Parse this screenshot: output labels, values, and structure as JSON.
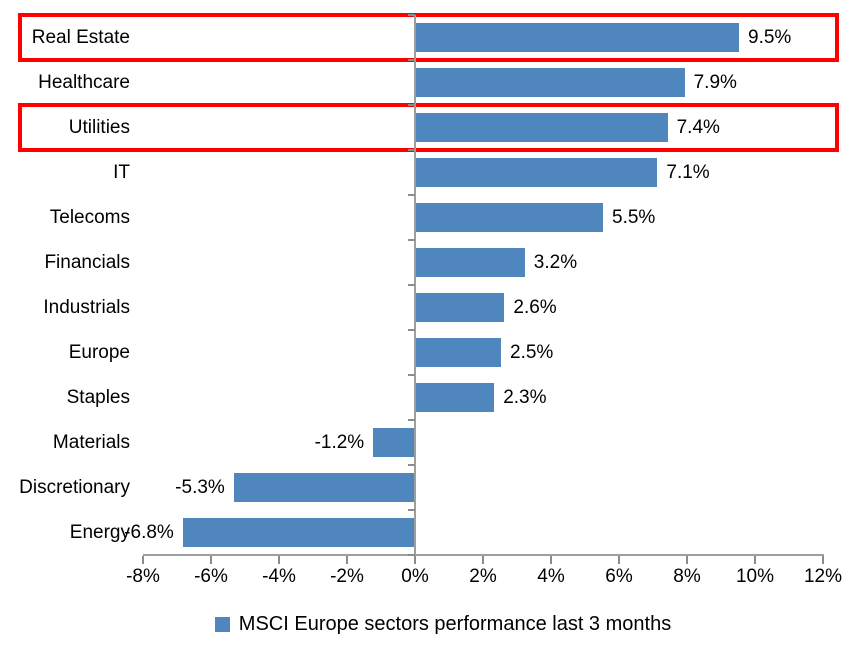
{
  "chart_data": {
    "type": "bar",
    "orientation": "horizontal",
    "title": "",
    "categories": [
      "Real Estate",
      "Healthcare",
      "Utilities",
      "IT",
      "Telecoms",
      "Financials",
      "Industrials",
      "Europe",
      "Staples",
      "Materials",
      "Discretionary",
      "Energy"
    ],
    "values": [
      9.5,
      7.9,
      7.4,
      7.1,
      5.5,
      3.2,
      2.6,
      2.5,
      2.3,
      -1.2,
      -5.3,
      -6.8
    ],
    "value_labels": [
      "9.5%",
      "7.9%",
      "7.4%",
      "7.1%",
      "5.5%",
      "3.2%",
      "2.6%",
      "2.5%",
      "2.3%",
      "-1.2%",
      "-5.3%",
      "-6.8%"
    ],
    "xlim": [
      -8,
      12
    ],
    "x_ticks": [
      -8,
      -6,
      -4,
      -2,
      0,
      2,
      4,
      6,
      8,
      10,
      12
    ],
    "x_tick_labels": [
      "-8%",
      "-6%",
      "-4%",
      "-2%",
      "0%",
      "2%",
      "4%",
      "6%",
      "8%",
      "10%",
      "12%"
    ],
    "grid": false,
    "legend": "MSCI Europe sectors performance last 3 months",
    "legend_position": "bottom",
    "bar_color": "#4f86bd",
    "axis_color": "#9e9e9e",
    "tick_color": "#8c8c8c",
    "highlight_color": "#ff0000",
    "highlighted_categories": [
      "Real Estate",
      "Utilities"
    ]
  }
}
